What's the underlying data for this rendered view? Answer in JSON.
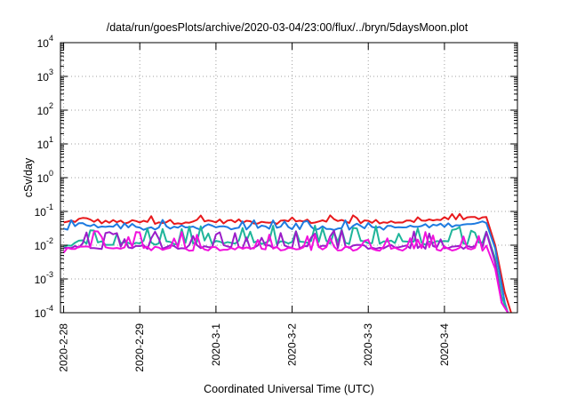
{
  "chart_data": {
    "type": "line",
    "title": "/data/run/goesPlots/archive/2020-03-04/23:00/flux/../bryn/5daysMoon.plot",
    "xlabel": "Coordinated Universal Time (UTC)",
    "ylabel": "cSv/day",
    "y_scale": "log",
    "ylim": [
      0.0001,
      10000
    ],
    "y_ticks": [
      {
        "value": 0.0001,
        "base": "10",
        "exp": "-4"
      },
      {
        "value": 0.001,
        "base": "10",
        "exp": "-3"
      },
      {
        "value": 0.01,
        "base": "10",
        "exp": "-2"
      },
      {
        "value": 0.1,
        "base": "10",
        "exp": "-1"
      },
      {
        "value": 1,
        "base": "10",
        "exp": "0"
      },
      {
        "value": 10,
        "base": "10",
        "exp": "1"
      },
      {
        "value": 100,
        "base": "10",
        "exp": "2"
      },
      {
        "value": 1000,
        "base": "10",
        "exp": "3"
      },
      {
        "value": 10000,
        "base": "10",
        "exp": "4"
      }
    ],
    "xlim": [
      "2020-02-27 23:00",
      "2020-03-04 23:00"
    ],
    "x_ticks": [
      "2020-2-28",
      "2020-2-29",
      "2020-3-1",
      "2020-3-2",
      "2020-3-3",
      "2020-3-4"
    ],
    "grid": true,
    "series": [
      {
        "color": "#e8191c",
        "level": 0.05,
        "x": [
          "2020-02-28 00:00",
          "2020-02-28 06:00",
          "2020-02-28 12:00",
          "2020-02-29 00:00",
          "2020-02-29 12:00",
          "2020-03-01 00:00",
          "2020-03-01 12:00",
          "2020-03-02 00:00",
          "2020-03-02 12:00",
          "2020-03-03 00:00",
          "2020-03-03 12:00",
          "2020-03-04 00:00",
          "2020-03-04 12:00",
          "2020-03-04 14:00",
          "2020-03-04 16:00",
          "2020-03-04 19:00",
          "2020-03-04 21:00"
        ],
        "y": [
          0.045,
          0.06,
          0.05,
          0.048,
          0.05,
          0.052,
          0.05,
          0.05,
          0.052,
          0.05,
          0.05,
          0.06,
          0.06,
          0.065,
          0.01,
          0.0004,
          0.0001
        ]
      },
      {
        "color": "#1e7be0",
        "level": 0.033,
        "x": [
          "2020-02-28 00:00",
          "2020-02-28 06:00",
          "2020-02-28 12:00",
          "2020-02-29 00:00",
          "2020-02-29 12:00",
          "2020-03-01 00:00",
          "2020-03-01 12:00",
          "2020-03-02 00:00",
          "2020-03-02 12:00",
          "2020-03-03 00:00",
          "2020-03-03 12:00",
          "2020-03-04 00:00",
          "2020-03-04 12:00",
          "2020-03-04 14:00",
          "2020-03-04 16:00",
          "2020-03-04 19:00",
          "2020-03-04 20:00"
        ],
        "y": [
          0.03,
          0.045,
          0.033,
          0.032,
          0.034,
          0.033,
          0.033,
          0.034,
          0.033,
          0.033,
          0.034,
          0.04,
          0.045,
          0.05,
          0.008,
          0.0002,
          0.0001
        ]
      },
      {
        "color": "#1fb59a",
        "level": 0.012,
        "x": [
          "2020-02-28 00:00",
          "2020-02-28 06:00",
          "2020-02-28 12:00",
          "2020-02-29 00:00",
          "2020-02-29 12:00",
          "2020-03-01 00:00",
          "2020-03-01 12:00",
          "2020-03-02 00:00",
          "2020-03-02 12:00",
          "2020-03-03 00:00",
          "2020-03-03 12:00",
          "2020-03-04 00:00",
          "2020-03-04 12:00",
          "2020-03-04 14:00",
          "2020-03-04 16:00",
          "2020-03-04 18:00",
          "2020-03-04 20:00"
        ],
        "y": [
          0.01,
          0.013,
          0.012,
          0.012,
          0.012,
          0.012,
          0.012,
          0.012,
          0.012,
          0.012,
          0.012,
          0.012,
          0.012,
          0.013,
          0.004,
          0.0003,
          0.0001
        ]
      },
      {
        "color": "#9b1cc9",
        "level": 0.009,
        "x": [
          "2020-02-28 00:00",
          "2020-02-28 06:00",
          "2020-02-28 12:00",
          "2020-02-29 00:00",
          "2020-02-29 12:00",
          "2020-03-01 00:00",
          "2020-03-01 12:00",
          "2020-03-02 00:00",
          "2020-03-02 12:00",
          "2020-03-03 00:00",
          "2020-03-03 12:00",
          "2020-03-04 00:00",
          "2020-03-04 12:00",
          "2020-03-04 14:00",
          "2020-03-04 16:00",
          "2020-03-04 18:00",
          "2020-03-04 20:00"
        ],
        "y": [
          0.008,
          0.01,
          0.009,
          0.009,
          0.009,
          0.009,
          0.009,
          0.009,
          0.009,
          0.009,
          0.009,
          0.009,
          0.009,
          0.01,
          0.003,
          0.0002,
          0.0001
        ]
      },
      {
        "color": "#f211dd",
        "level": 0.008,
        "x": [
          "2020-02-28 00:00",
          "2020-02-28 06:00",
          "2020-02-28 12:00",
          "2020-02-29 00:00",
          "2020-02-29 12:00",
          "2020-03-01 00:00",
          "2020-03-01 12:00",
          "2020-03-02 00:00",
          "2020-03-02 12:00",
          "2020-03-03 00:00",
          "2020-03-03 12:00",
          "2020-03-04 00:00",
          "2020-03-04 12:00",
          "2020-03-04 14:00",
          "2020-03-04 16:00",
          "2020-03-04 18:00",
          "2020-03-04 20:00"
        ],
        "y": [
          0.007,
          0.009,
          0.008,
          0.008,
          0.008,
          0.008,
          0.008,
          0.008,
          0.008,
          0.008,
          0.008,
          0.008,
          0.008,
          0.009,
          0.002,
          0.0002,
          0.0001
        ]
      }
    ]
  }
}
